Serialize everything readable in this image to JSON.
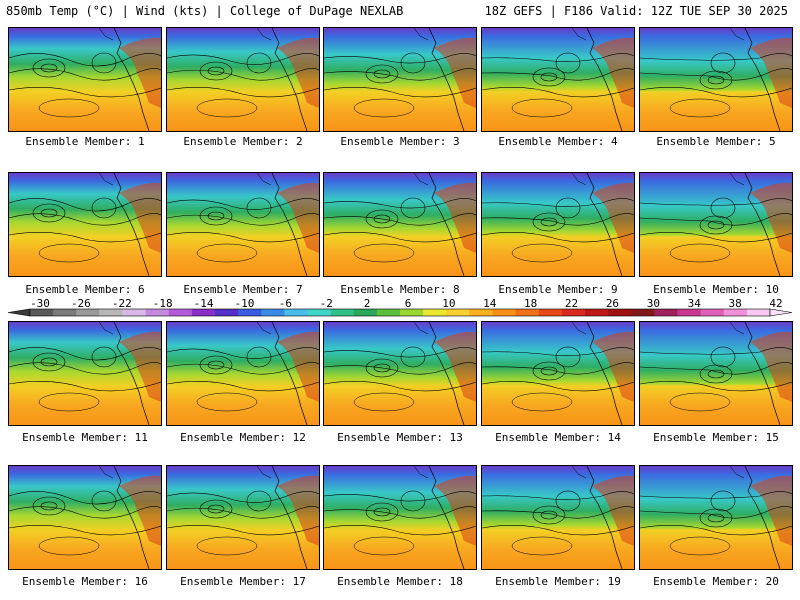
{
  "header": {
    "left": "850mb Temp (°C) | Wind (kts) | College of DuPage NEXLAB",
    "right": "18Z GEFS | F186 Valid: 12Z TUE SEP 30 2025"
  },
  "panels": [
    {
      "label": "Ensemble Member: 1"
    },
    {
      "label": "Ensemble Member: 2"
    },
    {
      "label": "Ensemble Member: 3"
    },
    {
      "label": "Ensemble Member: 4"
    },
    {
      "label": "Ensemble Member: 5"
    },
    {
      "label": "Ensemble Member: 6"
    },
    {
      "label": "Ensemble Member: 7"
    },
    {
      "label": "Ensemble Member: 8"
    },
    {
      "label": "Ensemble Member: 9"
    },
    {
      "label": "Ensemble Member: 10"
    },
    {
      "label": "Ensemble Member: 11"
    },
    {
      "label": "Ensemble Member: 12"
    },
    {
      "label": "Ensemble Member: 13"
    },
    {
      "label": "Ensemble Member: 14"
    },
    {
      "label": "Ensemble Member: 15"
    },
    {
      "label": "Ensemble Member: 16"
    },
    {
      "label": "Ensemble Member: 17"
    },
    {
      "label": "Ensemble Member: 18"
    },
    {
      "label": "Ensemble Member: 19"
    },
    {
      "label": "Ensemble Member: 20"
    }
  ],
  "colorbar": {
    "ticks": [
      "-30",
      "-26",
      "-22",
      "-18",
      "-14",
      "-10",
      "-6",
      "-2",
      "2",
      "6",
      "10",
      "14",
      "18",
      "22",
      "26",
      "30",
      "34",
      "38",
      "42"
    ],
    "colors": [
      "#5a5a5a",
      "#7a7a7a",
      "#9a9a9a",
      "#b8b8b8",
      "#d8b8e8",
      "#c58ae0",
      "#b35ad8",
      "#8a2fc8",
      "#5530c8",
      "#3a5ae0",
      "#3a8ae8",
      "#49bde8",
      "#3fd6c8",
      "#2fc08a",
      "#2aa85a",
      "#5cbf3a",
      "#9ed630",
      "#e8e830",
      "#f8d030",
      "#f8b020",
      "#f89018",
      "#f07018",
      "#e84818",
      "#d82820",
      "#c01818",
      "#a01010",
      "#801818",
      "#a02060",
      "#c83890",
      "#e060b8",
      "#f090d8",
      "#f8c8f0"
    ]
  }
}
